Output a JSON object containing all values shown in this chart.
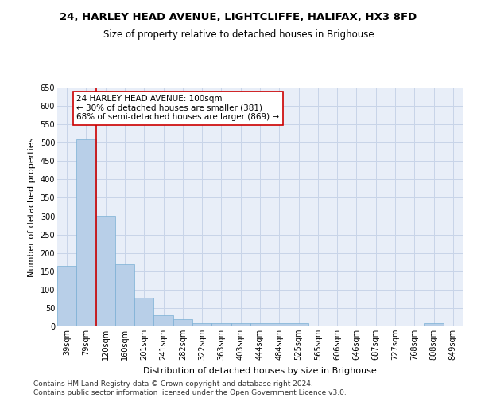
{
  "title": "24, HARLEY HEAD AVENUE, LIGHTCLIFFE, HALIFAX, HX3 8FD",
  "subtitle": "Size of property relative to detached houses in Brighouse",
  "xlabel": "Distribution of detached houses by size in Brighouse",
  "ylabel": "Number of detached properties",
  "categories": [
    "39sqm",
    "79sqm",
    "120sqm",
    "160sqm",
    "201sqm",
    "241sqm",
    "282sqm",
    "322sqm",
    "363sqm",
    "403sqm",
    "444sqm",
    "484sqm",
    "525sqm",
    "565sqm",
    "606sqm",
    "646sqm",
    "687sqm",
    "727sqm",
    "768sqm",
    "808sqm",
    "849sqm"
  ],
  "values": [
    165,
    510,
    302,
    168,
    78,
    31,
    20,
    8,
    8,
    8,
    8,
    8,
    8,
    0,
    0,
    0,
    0,
    0,
    0,
    8,
    0
  ],
  "bar_color": "#b8cfe8",
  "bar_edge_color": "#7aafd4",
  "vline_x_index": 1.5,
  "vline_color": "#cc0000",
  "annotation_line1": "24 HARLEY HEAD AVENUE: 100sqm",
  "annotation_line2": "← 30% of detached houses are smaller (381)",
  "annotation_line3": "68% of semi-detached houses are larger (869) →",
  "annotation_box_color": "#ffffff",
  "annotation_box_edge": "#cc0000",
  "ylim": [
    0,
    650
  ],
  "yticks": [
    0,
    50,
    100,
    150,
    200,
    250,
    300,
    350,
    400,
    450,
    500,
    550,
    600,
    650
  ],
  "grid_color": "#c8d4e8",
  "background_color": "#e8eef8",
  "footer_line1": "Contains HM Land Registry data © Crown copyright and database right 2024.",
  "footer_line2": "Contains public sector information licensed under the Open Government Licence v3.0.",
  "title_fontsize": 9.5,
  "subtitle_fontsize": 8.5,
  "axis_label_fontsize": 8,
  "tick_fontsize": 7,
  "footer_fontsize": 6.5,
  "annotation_fontsize": 7.5
}
